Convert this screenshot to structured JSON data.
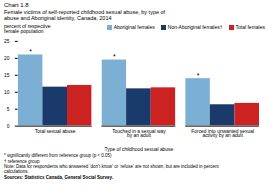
{
  "chart_data": {
    "type": "bar",
    "title": "Chart 1.8",
    "subtitle": "Female victims of self-reported childhood sexual abuse, by type of\nabuse and Aboriginal identity, Canada, 2014",
    "xlabel": "Type of childhood sexual abuse",
    "ylabel": "percent of respective\nfemale population",
    "categories": [
      "Total sexual abuse",
      "Touched in a sexual way\nby an adult",
      "Forced into unwanted sexual\nactivity by an adult"
    ],
    "series": [
      {
        "name": "Aboriginal females",
        "color": "#7bafd4",
        "values": [
          21.0,
          19.5,
          14.0
        ]
      },
      {
        "name": "Non-Aboriginal females†",
        "color": "#1a3a6b",
        "values": [
          11.5,
          11.0,
          6.3
        ]
      },
      {
        "name": "Total females",
        "color": "#cc2222",
        "values": [
          12.0,
          11.3,
          6.7
        ]
      }
    ],
    "ylim": [
      0,
      25
    ],
    "yticks": [
      0,
      5,
      10,
      15,
      20,
      25
    ],
    "grid": false,
    "legend": "upper right",
    "annotations": [
      {
        "text": "*",
        "series": "Aboriginal females",
        "category": "Total sexual abuse"
      },
      {
        "text": "*",
        "series": "Aboriginal females",
        "category": "Touched in a sexual way\nby an adult"
      },
      {
        "text": "*",
        "series": "Aboriginal females",
        "category": "Forced into unwanted sexual\nactivity by an adult"
      }
    ],
    "footnotes": [
      "* significantly different from reference group (p < 0.05)",
      "† reference group",
      "Note: Data for respondents who answered ‘don’t know’ or ‘refuse’ are not shown, but are included in percent",
      "calculations.",
      "Sources: Statistics Canada, General Social Survey."
    ]
  }
}
